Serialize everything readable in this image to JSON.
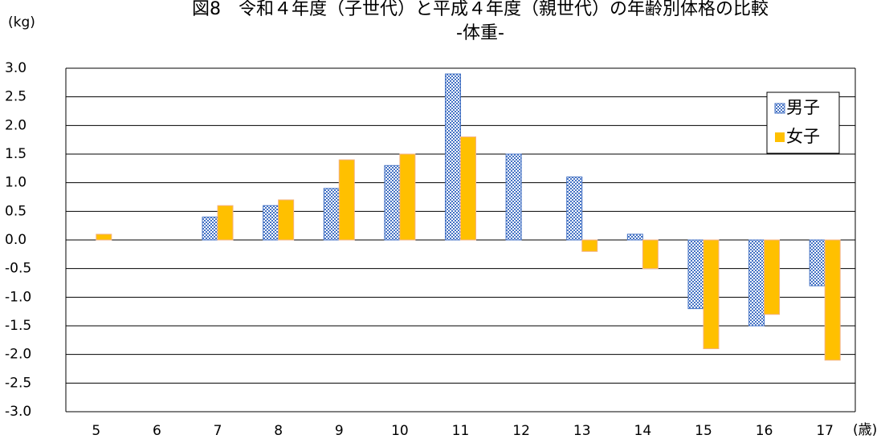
{
  "chart_data": {
    "type": "bar",
    "title": "図8　令和４年度（子世代）と平成４年度（親世代）の年齢別体格の比較",
    "subtitle": "-体重-",
    "y_label": "(kg)",
    "x_label": "(歳)",
    "categories": [
      "5",
      "6",
      "7",
      "8",
      "9",
      "10",
      "11",
      "12",
      "13",
      "14",
      "15",
      "16",
      "17"
    ],
    "series": [
      {
        "name": "男子",
        "color": "#4472c4",
        "values": [
          0,
          0,
          0.4,
          0.6,
          0.9,
          1.3,
          2.9,
          1.5,
          1.1,
          0.1,
          -1.2,
          -1.5,
          -0.8
        ]
      },
      {
        "name": "女子",
        "color": "#ffc000",
        "values": [
          0.1,
          0,
          0.6,
          0.7,
          1.4,
          1.5,
          1.8,
          0,
          -0.2,
          -0.5,
          -1.9,
          -1.3,
          -2.1
        ]
      }
    ],
    "ylim": [
      -3,
      3
    ],
    "yticks": [
      {
        "value": 3,
        "label": "3.0"
      },
      2.5,
      {
        "value": 2,
        "label": "2.0"
      },
      1.5,
      {
        "value": 1,
        "label": "1.0"
      },
      0.5,
      {
        "value": 0,
        "label": "0.0"
      },
      -0.5,
      {
        "value": -1,
        "label": "-1.0"
      },
      -1.5,
      {
        "value": -2,
        "label": "-2.0"
      },
      -2.5,
      {
        "value": -3,
        "label": "-3.0"
      }
    ],
    "grid": true,
    "legend": "upper right"
  }
}
